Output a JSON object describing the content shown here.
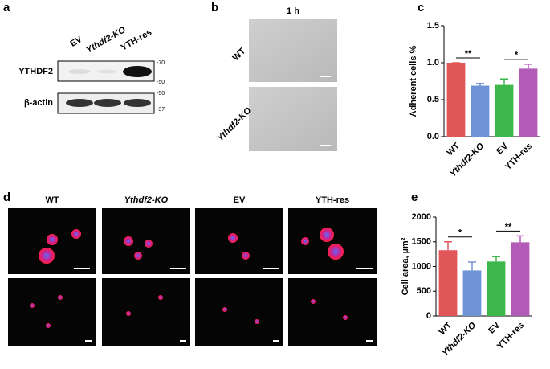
{
  "panel_a": {
    "label": "a",
    "lanes": [
      "EV",
      "Ythdf2-KO",
      "YTH-res"
    ],
    "rows": [
      "YTHDF2",
      "β-actin"
    ],
    "markers": [
      "-70",
      "-50",
      "-50",
      "-37"
    ]
  },
  "panel_b": {
    "label": "b",
    "time": "1 h",
    "rows": [
      "WT",
      "Ythdf2-KO"
    ]
  },
  "panel_d": {
    "label": "d",
    "columns": [
      "WT",
      "Ythdf2-KO",
      "EV",
      "YTH-res"
    ]
  },
  "chart_data": [
    {
      "type": "bar",
      "panel_label": "c",
      "ylabel": "Adherent cells %",
      "categories": [
        "WT",
        "Ythdf2-KO",
        "EV",
        "YTH-res"
      ],
      "values": [
        1.0,
        0.69,
        0.7,
        0.92
      ],
      "errors": [
        0,
        0.03,
        0.08,
        0.06
      ],
      "colors": [
        "#e15759",
        "#6f93d6",
        "#3cb84a",
        "#b25cb8"
      ],
      "ylim": [
        0,
        1.5
      ],
      "yticks": [
        {
          "value": 0,
          "label": "0.0"
        },
        0.5,
        {
          "value": 1,
          "label": "1.0"
        },
        1.5
      ],
      "annotations": [
        "**",
        "*"
      ]
    },
    {
      "type": "bar",
      "panel_label": "e",
      "ylabel": "Cell area, µm²",
      "categories": [
        "WT",
        "Ythdf2-KO",
        "EV",
        "YTH-res"
      ],
      "values": [
        1330,
        920,
        1100,
        1490
      ],
      "errors": [
        170,
        170,
        100,
        130
      ],
      "colors": [
        "#e15759",
        "#6f93d6",
        "#3cb84a",
        "#b25cb8"
      ],
      "ylim": [
        0,
        2000
      ],
      "yticks": [
        0,
        500,
        1000,
        1500,
        2000
      ],
      "annotations": [
        "*",
        "**"
      ]
    }
  ]
}
